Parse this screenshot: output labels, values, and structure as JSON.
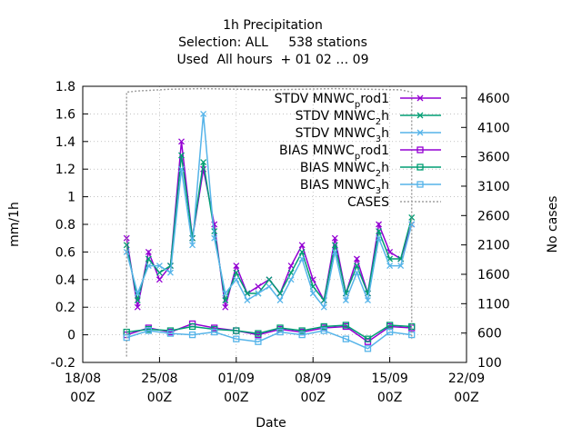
{
  "chart_data": {
    "type": "line",
    "title_lines": [
      "1h Precipitation",
      "Selection: ALL     538 stations",
      "Used  All hours  + 01 02 … 09"
    ],
    "xlabel": "Date",
    "ylabel": "mm/1h",
    "y2label": "No cases",
    "x_ticks": [
      {
        "date": "2018-08-18",
        "line1": "18/08",
        "line2": "00Z"
      },
      {
        "date": "2018-08-25",
        "line1": "25/08",
        "line2": "00Z"
      },
      {
        "date": "2018-09-01",
        "line1": "01/09",
        "line2": "00Z"
      },
      {
        "date": "2018-09-08",
        "line1": "08/09",
        "line2": "00Z"
      },
      {
        "date": "2018-09-15",
        "line1": "15/09",
        "line2": "00Z"
      },
      {
        "date": "2018-09-22",
        "line1": "22/09",
        "line2": "00Z"
      }
    ],
    "xlim": [
      "2018-08-18",
      "2018-09-22"
    ],
    "ylim": [
      -0.2,
      1.8
    ],
    "y_ticks": [
      -0.2,
      0,
      0.2,
      0.4,
      0.6,
      0.8,
      1,
      1.2,
      1.4,
      1.6,
      1.8
    ],
    "y2lim": [
      100,
      4800
    ],
    "y2_ticks": [
      100,
      600,
      1100,
      1600,
      2100,
      2600,
      3100,
      3600,
      4100,
      4600
    ],
    "grid": true,
    "legend_position": "top-right",
    "series": [
      {
        "name": "STDV MNWC_prod1",
        "label_main": "STDV MNWC",
        "label_sub": "p",
        "label_tail": "rod1",
        "color": "#9400d3",
        "marker": "x",
        "axis": "y",
        "x": [
          "2018-08-22",
          "2018-08-23",
          "2018-08-24",
          "2018-08-25",
          "2018-08-26",
          "2018-08-27",
          "2018-08-28",
          "2018-08-29",
          "2018-08-30",
          "2018-08-31",
          "2018-09-01",
          "2018-09-02",
          "2018-09-03",
          "2018-09-04",
          "2018-09-05",
          "2018-09-06",
          "2018-09-07",
          "2018-09-08",
          "2018-09-09",
          "2018-09-10",
          "2018-09-11",
          "2018-09-12",
          "2018-09-13",
          "2018-09-14",
          "2018-09-15",
          "2018-09-16",
          "2018-09-17"
        ],
        "values": [
          0.7,
          0.2,
          0.6,
          0.4,
          0.5,
          1.4,
          0.7,
          1.2,
          0.8,
          0.2,
          0.5,
          0.3,
          0.35,
          0.4,
          0.3,
          0.5,
          0.65,
          0.4,
          0.25,
          0.7,
          0.3,
          0.55,
          0.3,
          0.8,
          0.6,
          0.55,
          0.8
        ]
      },
      {
        "name": "STDV MNWC_2h",
        "label_main": "STDV MNWC",
        "label_sub": "2",
        "label_tail": "h",
        "color": "#009e73",
        "marker": "x",
        "axis": "y",
        "x": [
          "2018-08-22",
          "2018-08-23",
          "2018-08-24",
          "2018-08-25",
          "2018-08-26",
          "2018-08-27",
          "2018-08-28",
          "2018-08-29",
          "2018-08-30",
          "2018-08-31",
          "2018-09-01",
          "2018-09-02",
          "2018-09-03",
          "2018-09-04",
          "2018-09-05",
          "2018-09-06",
          "2018-09-07",
          "2018-09-08",
          "2018-09-09",
          "2018-09-10",
          "2018-09-11",
          "2018-09-12",
          "2018-09-13",
          "2018-09-14",
          "2018-09-15",
          "2018-09-16",
          "2018-09-17"
        ],
        "values": [
          0.65,
          0.25,
          0.55,
          0.45,
          0.5,
          1.3,
          0.7,
          1.25,
          0.75,
          0.25,
          0.45,
          0.3,
          0.3,
          0.4,
          0.3,
          0.45,
          0.6,
          0.35,
          0.25,
          0.65,
          0.3,
          0.5,
          0.3,
          0.75,
          0.55,
          0.55,
          0.85
        ]
      },
      {
        "name": "STDV MNWC_3h",
        "label_main": "STDV MNWC",
        "label_sub": "3",
        "label_tail": "h",
        "color": "#56b4e9",
        "marker": "x",
        "axis": "y",
        "x": [
          "2018-08-22",
          "2018-08-23",
          "2018-08-24",
          "2018-08-25",
          "2018-08-26",
          "2018-08-27",
          "2018-08-28",
          "2018-08-29",
          "2018-08-30",
          "2018-08-31",
          "2018-09-01",
          "2018-09-02",
          "2018-09-03",
          "2018-09-04",
          "2018-09-05",
          "2018-09-06",
          "2018-09-07",
          "2018-09-08",
          "2018-09-09",
          "2018-09-10",
          "2018-09-11",
          "2018-09-12",
          "2018-09-13",
          "2018-09-14",
          "2018-09-15",
          "2018-09-16",
          "2018-09-17"
        ],
        "values": [
          0.6,
          0.3,
          0.5,
          0.5,
          0.45,
          1.2,
          0.65,
          1.6,
          0.7,
          0.3,
          0.4,
          0.25,
          0.3,
          0.35,
          0.25,
          0.4,
          0.55,
          0.3,
          0.2,
          0.6,
          0.25,
          0.45,
          0.25,
          0.7,
          0.5,
          0.5,
          0.8
        ]
      },
      {
        "name": "BIAS MNWC_prod1",
        "label_main": "BIAS MNWC",
        "label_sub": "p",
        "label_tail": "rod1",
        "color": "#9400d3",
        "marker": "square",
        "axis": "y",
        "x": [
          "2018-08-22",
          "2018-08-24",
          "2018-08-26",
          "2018-08-28",
          "2018-08-30",
          "2018-09-01",
          "2018-09-03",
          "2018-09-05",
          "2018-09-07",
          "2018-09-09",
          "2018-09-11",
          "2018-09-13",
          "2018-09-15",
          "2018-09-17"
        ],
        "values": [
          0.0,
          0.05,
          0.02,
          0.08,
          0.05,
          0.03,
          0.0,
          0.04,
          0.02,
          0.05,
          0.06,
          -0.05,
          0.06,
          0.05
        ]
      },
      {
        "name": "BIAS MNWC_2h",
        "label_main": "BIAS MNWC",
        "label_sub": "2",
        "label_tail": "h",
        "color": "#009e73",
        "marker": "square",
        "axis": "y",
        "x": [
          "2018-08-22",
          "2018-08-24",
          "2018-08-26",
          "2018-08-28",
          "2018-08-30",
          "2018-09-01",
          "2018-09-03",
          "2018-09-05",
          "2018-09-07",
          "2018-09-09",
          "2018-09-11",
          "2018-09-13",
          "2018-09-15",
          "2018-09-17"
        ],
        "values": [
          0.02,
          0.04,
          0.03,
          0.06,
          0.04,
          0.03,
          0.01,
          0.05,
          0.03,
          0.06,
          0.07,
          -0.03,
          0.07,
          0.06
        ]
      },
      {
        "name": "BIAS MNWC_3h",
        "label_main": "BIAS MNWC",
        "label_sub": "3",
        "label_tail": "h",
        "color": "#56b4e9",
        "marker": "square",
        "axis": "y",
        "x": [
          "2018-08-22",
          "2018-08-24",
          "2018-08-26",
          "2018-08-28",
          "2018-08-30",
          "2018-09-01",
          "2018-09-03",
          "2018-09-05",
          "2018-09-07",
          "2018-09-09",
          "2018-09-11",
          "2018-09-13",
          "2018-09-15",
          "2018-09-17"
        ],
        "values": [
          -0.02,
          0.03,
          0.01,
          0.0,
          0.02,
          -0.03,
          -0.05,
          0.02,
          0.0,
          0.03,
          -0.03,
          -0.1,
          0.02,
          0.0
        ]
      },
      {
        "name": "CASES",
        "label_main": "CASES",
        "label_sub": "",
        "label_tail": "",
        "color": "#a0a0a0",
        "marker": "none",
        "dashed": true,
        "axis": "y2",
        "x": [
          "2018-08-22",
          "2018-08-22",
          "2018-08-23",
          "2018-08-26",
          "2018-08-29",
          "2018-09-01",
          "2018-09-04",
          "2018-09-07",
          "2018-09-10",
          "2018-09-13",
          "2018-09-16",
          "2018-09-17",
          "2018-09-17"
        ],
        "values": [
          200,
          4700,
          4720,
          4750,
          4760,
          4750,
          4740,
          4750,
          4760,
          4750,
          4740,
          4700,
          500
        ]
      }
    ]
  }
}
